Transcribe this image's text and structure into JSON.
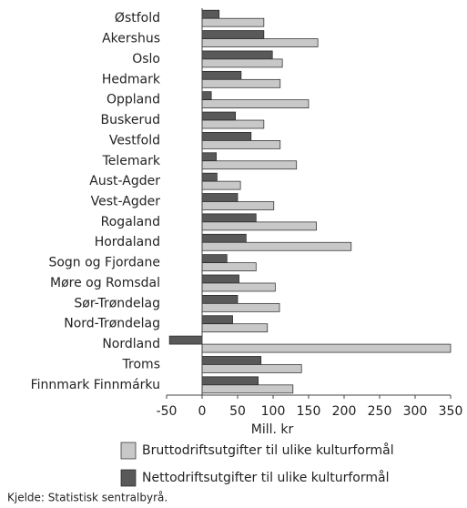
{
  "chart_data": {
    "type": "barh",
    "categories": [
      "Østfold",
      "Akershus",
      "Oslo",
      "Hedmark",
      "Oppland",
      "Buskerud",
      "Vestfold",
      "Telemark",
      "Aust-Agder",
      "Vest-Agder",
      "Rogaland",
      "Hordaland",
      "Sogn og Fjordane",
      "Møre og Romsdal",
      "Sør-Trøndelag",
      "Nord-Trøndelag",
      "Nordland",
      "Troms",
      "Finnmark Finnmárku"
    ],
    "series": [
      {
        "name": "Nettodriftsutgifter til ulike kulturformål",
        "color": "#595959",
        "values": [
          24,
          87,
          99,
          55,
          13,
          47,
          69,
          20,
          21,
          50,
          76,
          62,
          35,
          52,
          50,
          43,
          -46,
          83,
          79
        ]
      },
      {
        "name": "Bruttodriftsutgifter til ulike kulturformål",
        "color": "#c8c8c8",
        "values": [
          87,
          163,
          113,
          110,
          150,
          87,
          110,
          133,
          54,
          101,
          161,
          210,
          76,
          103,
          109,
          92,
          350,
          140,
          128
        ]
      }
    ],
    "xlabel": "Mill. kr",
    "xlim": [
      -50,
      350
    ],
    "xticks": [
      -50,
      0,
      50,
      100,
      150,
      200,
      250,
      300,
      350
    ],
    "source": "Kjelde: Statistisk sentralbyrå."
  }
}
